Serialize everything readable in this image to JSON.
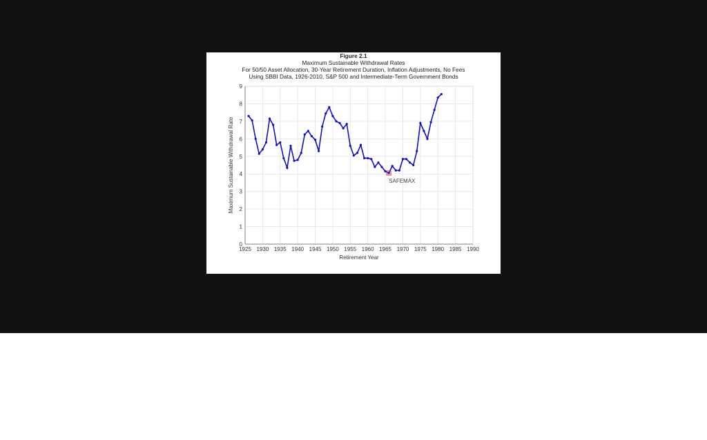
{
  "chart_data": {
    "type": "line",
    "title": "Figure 2.1",
    "subtitle": [
      "Maximum Sustainable Withdrawal Rates",
      "For 50/50 Asset Allocation, 30-Year Retirement Duration, Inflation Adjustments, No Fees",
      "Using SBBI Data, 1926-2010, S&P 500 and Intermediate-Term Government Bonds"
    ],
    "xlabel": "Retirement Year",
    "ylabel": "Maximum Sustainable Withdrawal Rate",
    "xlim": [
      1925,
      1990
    ],
    "ylim": [
      0,
      9
    ],
    "xticks": [
      1925,
      1930,
      1935,
      1940,
      1945,
      1950,
      1955,
      1960,
      1965,
      1970,
      1975,
      1980,
      1985,
      1990
    ],
    "yticks": [
      0,
      1,
      2,
      3,
      4,
      5,
      6,
      7,
      8,
      9
    ],
    "grid": true,
    "line_color": "#1010c0",
    "marker_color": "#e03030",
    "x": [
      1926,
      1927,
      1928,
      1929,
      1930,
      1931,
      1932,
      1933,
      1934,
      1935,
      1936,
      1937,
      1938,
      1939,
      1940,
      1941,
      1942,
      1943,
      1944,
      1945,
      1946,
      1947,
      1948,
      1949,
      1950,
      1951,
      1952,
      1953,
      1954,
      1955,
      1956,
      1957,
      1958,
      1959,
      1960,
      1961,
      1962,
      1963,
      1964,
      1965,
      1966,
      1967,
      1968,
      1969,
      1970,
      1971,
      1972,
      1973,
      1974,
      1975,
      1976,
      1977,
      1978,
      1979,
      1980,
      1981
    ],
    "values": [
      7.3,
      7.05,
      6.0,
      5.15,
      5.4,
      5.8,
      7.15,
      6.8,
      5.65,
      5.8,
      4.9,
      4.35,
      5.6,
      4.75,
      4.8,
      5.2,
      6.25,
      6.45,
      6.15,
      5.95,
      5.3,
      6.7,
      7.45,
      7.8,
      7.3,
      7.0,
      6.9,
      6.6,
      6.85,
      5.6,
      5.05,
      5.2,
      5.65,
      4.9,
      4.9,
      4.85,
      4.4,
      4.65,
      4.4,
      4.15,
      4.05,
      4.45,
      4.2,
      4.2,
      4.85,
      4.85,
      4.65,
      4.5,
      5.3,
      6.9,
      6.45,
      6.0,
      6.95,
      7.65,
      8.35,
      8.55
    ],
    "annotation": {
      "label": "SAFEMAX",
      "x": 1966,
      "y": 4.05
    }
  }
}
